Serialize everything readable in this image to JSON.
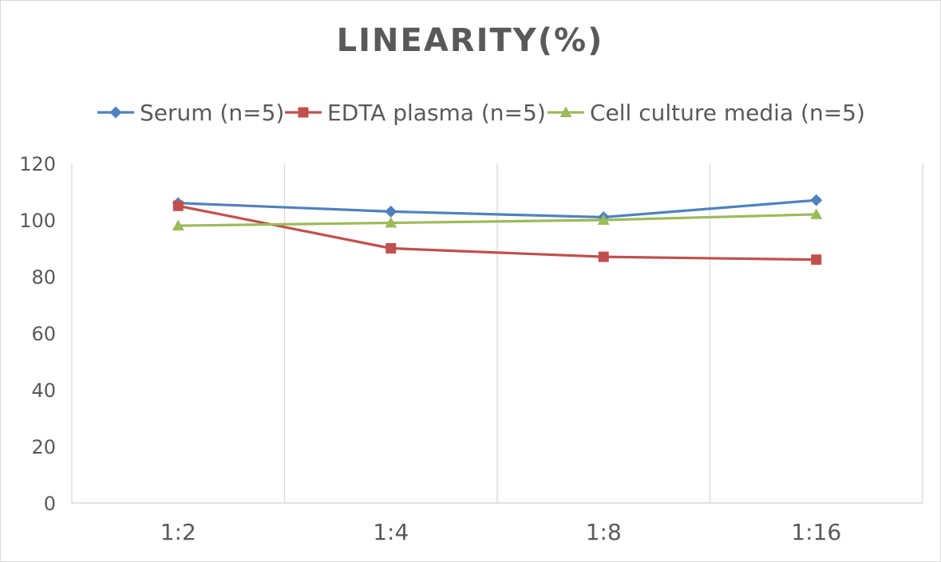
{
  "chart_data": {
    "type": "line",
    "title": "LINEARITY(%)",
    "categories": [
      "1:2",
      "1:4",
      "1:8",
      "1:16"
    ],
    "series": [
      {
        "name": "Serum (n=5)",
        "color": "#4f81bd",
        "marker": "diamond",
        "values": [
          106,
          103,
          101,
          107
        ]
      },
      {
        "name": "EDTA plasma (n=5)",
        "color": "#c0504d",
        "marker": "square",
        "values": [
          105,
          90,
          87,
          86
        ]
      },
      {
        "name": "Cell culture media (n=5)",
        "color": "#9bbb59",
        "marker": "triangle",
        "values": [
          98,
          99,
          100,
          102
        ]
      }
    ],
    "ylim": [
      0,
      120
    ],
    "yticks": [
      0,
      20,
      40,
      60,
      80,
      100,
      120
    ],
    "xlabel": "",
    "ylabel": "",
    "grid": "vertical",
    "legend": "top"
  }
}
